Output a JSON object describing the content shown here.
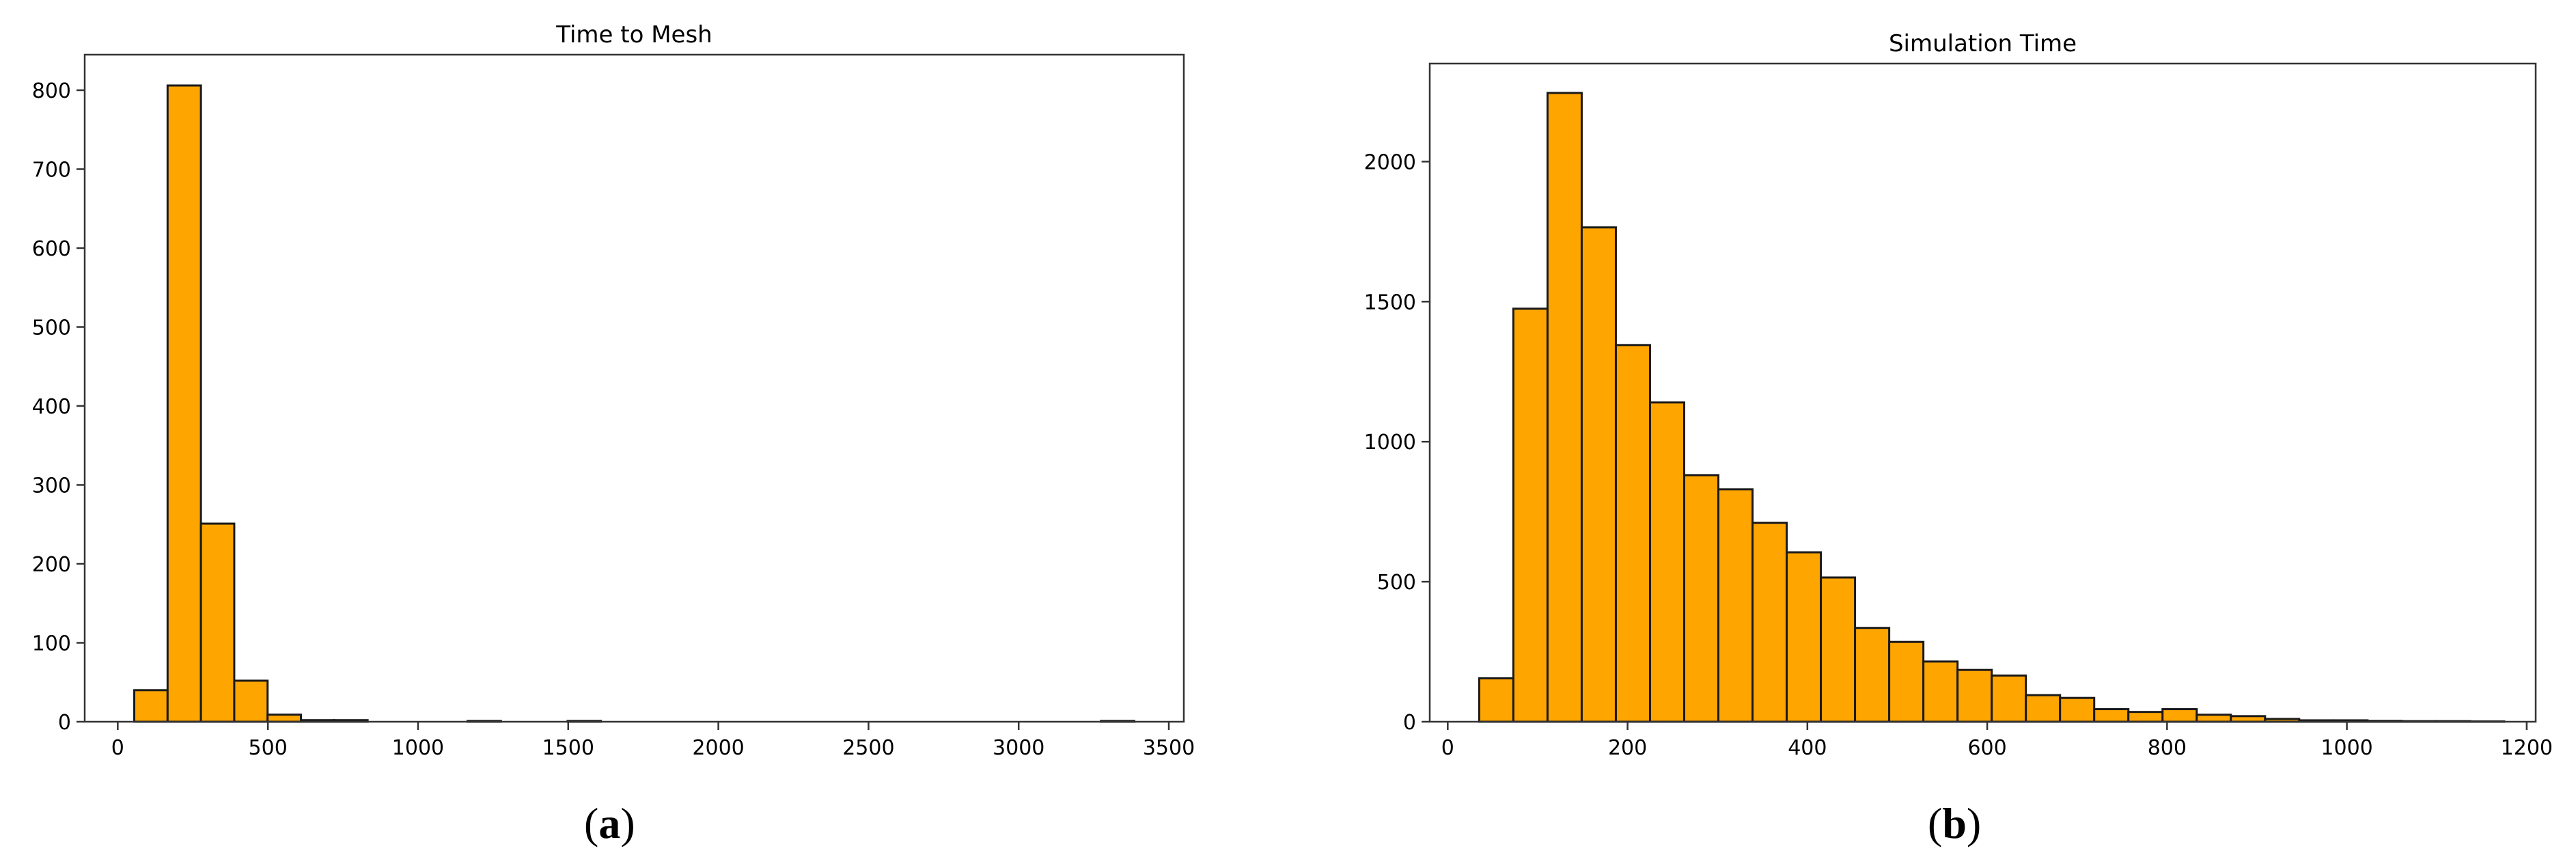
{
  "colors": {
    "bar_fill": "#ffa500",
    "bar_edge": "#1a1a1a",
    "axis": "#333333",
    "text": "#000000"
  },
  "panels": [
    {
      "open": "(",
      "letter": "a",
      "close": ")"
    },
    {
      "open": "(",
      "letter": "b",
      "close": ")"
    }
  ],
  "chart_data": [
    {
      "type": "bar",
      "title": "Time to Mesh",
      "xlabel": "",
      "ylabel": "",
      "xlim": [
        -110,
        3550
      ],
      "ylim": [
        0,
        845
      ],
      "xticks": [
        0,
        500,
        1000,
        1500,
        2000,
        2500,
        3000,
        3500
      ],
      "yticks": [
        0,
        100,
        200,
        300,
        400,
        500,
        600,
        700,
        800
      ],
      "grid": false,
      "bins": [
        {
          "x0": 55,
          "x1": 166,
          "value": 40
        },
        {
          "x0": 166,
          "x1": 277,
          "value": 806
        },
        {
          "x0": 277,
          "x1": 388,
          "value": 251
        },
        {
          "x0": 388,
          "x1": 499,
          "value": 52
        },
        {
          "x0": 499,
          "x1": 610,
          "value": 9
        },
        {
          "x0": 610,
          "x1": 721,
          "value": 2
        },
        {
          "x0": 721,
          "x1": 832,
          "value": 2
        },
        {
          "x0": 832,
          "x1": 943,
          "value": 0
        },
        {
          "x0": 943,
          "x1": 1054,
          "value": 0
        },
        {
          "x0": 1054,
          "x1": 1165,
          "value": 0
        },
        {
          "x0": 1165,
          "x1": 1276,
          "value": 1
        },
        {
          "x0": 1276,
          "x1": 1387,
          "value": 0
        },
        {
          "x0": 1387,
          "x1": 1498,
          "value": 0
        },
        {
          "x0": 1498,
          "x1": 1609,
          "value": 1
        },
        {
          "x0": 1609,
          "x1": 1720,
          "value": 0
        },
        {
          "x0": 1720,
          "x1": 1831,
          "value": 0
        },
        {
          "x0": 1831,
          "x1": 1942,
          "value": 0
        },
        {
          "x0": 1942,
          "x1": 2053,
          "value": 0
        },
        {
          "x0": 2053,
          "x1": 2164,
          "value": 0
        },
        {
          "x0": 2164,
          "x1": 2275,
          "value": 0
        },
        {
          "x0": 2275,
          "x1": 2386,
          "value": 0
        },
        {
          "x0": 2386,
          "x1": 2497,
          "value": 0
        },
        {
          "x0": 2497,
          "x1": 2608,
          "value": 0
        },
        {
          "x0": 2608,
          "x1": 2719,
          "value": 0
        },
        {
          "x0": 2719,
          "x1": 2830,
          "value": 0
        },
        {
          "x0": 2830,
          "x1": 2941,
          "value": 0
        },
        {
          "x0": 2941,
          "x1": 3052,
          "value": 0
        },
        {
          "x0": 3052,
          "x1": 3163,
          "value": 0
        },
        {
          "x0": 3163,
          "x1": 3274,
          "value": 0
        },
        {
          "x0": 3274,
          "x1": 3385,
          "value": 1
        }
      ]
    },
    {
      "type": "bar",
      "title": "Simulation Time",
      "xlabel": "",
      "ylabel": "",
      "xlim": [
        -20,
        1210
      ],
      "ylim": [
        0,
        2350
      ],
      "xticks": [
        0,
        200,
        400,
        600,
        800,
        1000,
        1200
      ],
      "yticks": [
        0,
        500,
        1000,
        1500,
        2000
      ],
      "grid": false,
      "bins": [
        {
          "x0": 35,
          "x1": 73,
          "value": 155
        },
        {
          "x0": 73,
          "x1": 111,
          "value": 1475
        },
        {
          "x0": 111,
          "x1": 149,
          "value": 2245
        },
        {
          "x0": 149,
          "x1": 187,
          "value": 1765
        },
        {
          "x0": 187,
          "x1": 225,
          "value": 1345
        },
        {
          "x0": 225,
          "x1": 263,
          "value": 1140
        },
        {
          "x0": 263,
          "x1": 301,
          "value": 880
        },
        {
          "x0": 301,
          "x1": 339,
          "value": 830
        },
        {
          "x0": 339,
          "x1": 377,
          "value": 710
        },
        {
          "x0": 377,
          "x1": 415,
          "value": 605
        },
        {
          "x0": 415,
          "x1": 453,
          "value": 515
        },
        {
          "x0": 453,
          "x1": 491,
          "value": 335
        },
        {
          "x0": 491,
          "x1": 529,
          "value": 285
        },
        {
          "x0": 529,
          "x1": 567,
          "value": 215
        },
        {
          "x0": 567,
          "x1": 605,
          "value": 185
        },
        {
          "x0": 605,
          "x1": 643,
          "value": 165
        },
        {
          "x0": 643,
          "x1": 681,
          "value": 95
        },
        {
          "x0": 681,
          "x1": 719,
          "value": 85
        },
        {
          "x0": 719,
          "x1": 757,
          "value": 45
        },
        {
          "x0": 757,
          "x1": 795,
          "value": 35
        },
        {
          "x0": 795,
          "x1": 833,
          "value": 45
        },
        {
          "x0": 833,
          "x1": 871,
          "value": 25
        },
        {
          "x0": 871,
          "x1": 909,
          "value": 20
        },
        {
          "x0": 909,
          "x1": 947,
          "value": 10
        },
        {
          "x0": 947,
          "x1": 985,
          "value": 5
        },
        {
          "x0": 985,
          "x1": 1023,
          "value": 5
        },
        {
          "x0": 1023,
          "x1": 1061,
          "value": 3
        },
        {
          "x0": 1061,
          "x1": 1099,
          "value": 2
        },
        {
          "x0": 1099,
          "x1": 1137,
          "value": 2
        },
        {
          "x0": 1137,
          "x1": 1175,
          "value": 1
        }
      ]
    }
  ]
}
